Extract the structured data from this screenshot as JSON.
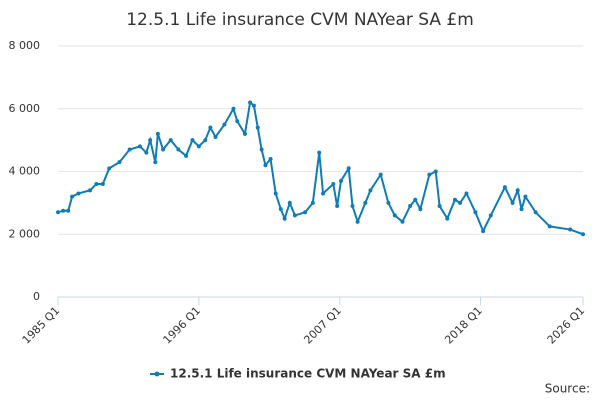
{
  "chart_data": {
    "type": "line",
    "title": "12.5.1 Life insurance CVM NAYear SA £m",
    "x": [
      1985.0,
      1985.4,
      1985.8,
      1986.1,
      1986.6,
      1987.5,
      1988.0,
      1988.5,
      1989.0,
      1989.8,
      1990.6,
      1991.4,
      1991.9,
      1992.2,
      1992.6,
      1992.8,
      1993.2,
      1993.8,
      1994.4,
      1995.0,
      1995.5,
      1996.0,
      1996.5,
      1996.9,
      1997.3,
      1998.0,
      1998.7,
      1999.0,
      1999.6,
      2000.0,
      2000.3,
      2000.6,
      2000.9,
      2001.2,
      2001.6,
      2002.0,
      2002.4,
      2002.7,
      2003.1,
      2003.5,
      2004.3,
      2004.9,
      2005.4,
      2005.7,
      2006.5,
      2006.8,
      2007.1,
      2007.7,
      2008.0,
      2008.4,
      2009.0,
      2009.4,
      2010.2,
      2010.8,
      2011.3,
      2011.9,
      2012.5,
      2012.9,
      2013.3,
      2014.0,
      2014.5,
      2014.8,
      2015.4,
      2016.0,
      2016.4,
      2016.9,
      2017.6,
      2018.2,
      2018.8,
      2019.9,
      2020.5,
      2020.9,
      2021.2,
      2021.5,
      2022.3,
      2023.4,
      2025.0,
      2026.0
    ],
    "series": [
      {
        "name": "12.5.1 Life insurance CVM NAYear SA £m",
        "color": "#0f7cb6",
        "values": [
          2700,
          2750,
          2750,
          3200,
          3300,
          3400,
          3600,
          3600,
          4100,
          4300,
          4700,
          4800,
          4600,
          5000,
          4300,
          5200,
          4700,
          5000,
          4700,
          4500,
          5000,
          4800,
          5000,
          5400,
          5100,
          5500,
          6000,
          5600,
          5200,
          6200,
          6100,
          5400,
          4700,
          4200,
          4400,
          3300,
          2800,
          2500,
          3000,
          2600,
          2700,
          3000,
          4600,
          3300,
          3600,
          2900,
          3700,
          4100,
          2900,
          2400,
          3000,
          3400,
          3900,
          3000,
          2600,
          2400,
          2900,
          3100,
          2800,
          3900,
          4000,
          2900,
          2500,
          3100,
          3000,
          3300,
          2700,
          2100,
          2600,
          3500,
          3000,
          3400,
          2800,
          3200,
          2700,
          2250,
          2150,
          2000
        ]
      }
    ],
    "xlim": [
      1985,
      2026
    ],
    "xticks": [
      {
        "value": 1985,
        "label": "1985 Q1"
      },
      {
        "value": 1996,
        "label": "1996 Q1"
      },
      {
        "value": 2007,
        "label": "2007 Q1"
      },
      {
        "value": 2018,
        "label": "2018 Q1"
      },
      {
        "value": 2026,
        "label": "2026 Q1"
      }
    ],
    "ylim": [
      0,
      8000
    ],
    "yticks": [
      0,
      {
        "value": 2000,
        "label": "2 000"
      },
      {
        "value": 4000,
        "label": "4 000"
      },
      {
        "value": 6000,
        "label": "6 000"
      },
      {
        "value": 8000,
        "label": "8 000"
      }
    ],
    "grid": true,
    "legend": "bottom",
    "source": "Source:"
  }
}
